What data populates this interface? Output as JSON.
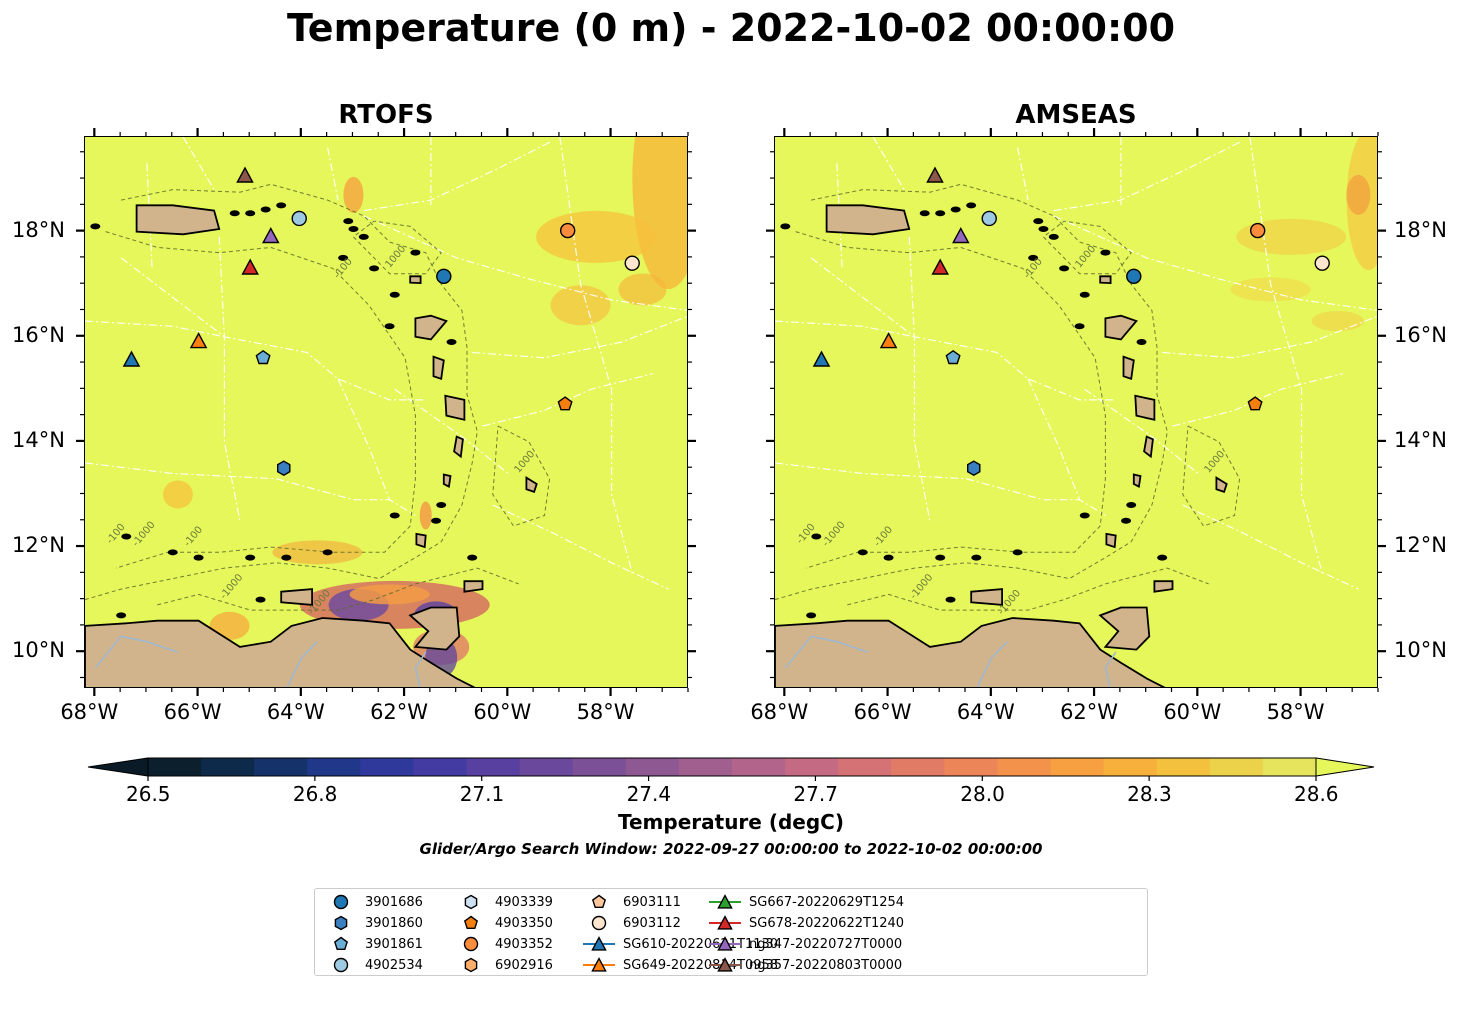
{
  "title": "Temperature (0 m) - 2022-10-02 00:00:00",
  "panels": [
    {
      "id": "rtofs",
      "title": "RTOFS"
    },
    {
      "id": "amseas",
      "title": "AMSEAS"
    }
  ],
  "lon_ticks": [
    "68°W",
    "66°W",
    "64°W",
    "62°W",
    "60°W",
    "58°W"
  ],
  "lat_ticks": [
    "18°N",
    "16°N",
    "14°N",
    "12°N",
    "10°N"
  ],
  "bathymetry_labels": [
    "-100",
    "-1000",
    "-1000",
    "-100",
    "1000",
    "-1000",
    "-100",
    "1000"
  ],
  "colorbar": {
    "label": "Temperature (degC)",
    "ticks": [
      "26.5",
      "26.8",
      "27.1",
      "27.4",
      "27.7",
      "28.0",
      "28.3",
      "28.6"
    ],
    "colors": [
      "#0b1f2c",
      "#0e2a4a",
      "#16326a",
      "#21378a",
      "#2f399c",
      "#433aa2",
      "#5840a0",
      "#6a489b",
      "#7c5096",
      "#8e5992",
      "#a05f8e",
      "#b3648a",
      "#c46a82",
      "#d47275",
      "#e27b66",
      "#ec8558",
      "#f3924b",
      "#f6a041",
      "#f7b03c",
      "#f3c13e",
      "#ebd24a",
      "#e6e45c"
    ],
    "over_color": "#e5f75a",
    "under_color": "#0a1a26"
  },
  "search_window": "Glider/Argo Search Window: 2022-09-27 00:00:00 to 2022-10-02 00:00:00",
  "legend": [
    {
      "label": "3901686",
      "marker": "circle",
      "color": "#1f77b4"
    },
    {
      "label": "3901860",
      "marker": "hexagon",
      "color": "#3a7fc0"
    },
    {
      "label": "3901861",
      "marker": "pentagon",
      "color": "#6aaed6"
    },
    {
      "label": "4902534",
      "marker": "circle",
      "color": "#9ecae1"
    },
    {
      "label": "4903339",
      "marker": "hexagon",
      "color": "#cde1f2"
    },
    {
      "label": "4903350",
      "marker": "pentagon",
      "color": "#f57f0e"
    },
    {
      "label": "4903352",
      "marker": "circle",
      "color": "#fd8d3c"
    },
    {
      "label": "6902916",
      "marker": "hexagon",
      "color": "#fdae6b"
    },
    {
      "label": "6903111",
      "marker": "pentagon",
      "color": "#fdc79b"
    },
    {
      "label": "6903112",
      "marker": "circle",
      "color": "#fee6ce"
    },
    {
      "label": "SG610-20220621T1130",
      "marker": "triangle",
      "color": "#1f77b4"
    },
    {
      "label": "SG649-20220814T0958",
      "marker": "triangle",
      "color": "#ff7f0e"
    },
    {
      "label": "SG667-20220629T1254",
      "marker": "triangle",
      "color": "#2ca02c"
    },
    {
      "label": "SG678-20220622T1240",
      "marker": "triangle",
      "color": "#d62728"
    },
    {
      "label": "ng347-20220727T0000",
      "marker": "triangle",
      "color": "#9467bd"
    },
    {
      "label": "ng357-20220803T0000",
      "marker": "triangle",
      "color": "#8c564b"
    }
  ],
  "map": {
    "ocean_color": "#e5f75a",
    "land_color": "#d2b48c",
    "lon_range": [
      -68.2,
      -56.5
    ],
    "lat_range": [
      9.3,
      19.8
    ]
  },
  "platforms": [
    {
      "legend_index": 0,
      "lon": -61.25,
      "lat": 17.15
    },
    {
      "legend_index": 1,
      "lon": -64.35,
      "lat": 13.5
    },
    {
      "legend_index": 2,
      "lon": -64.75,
      "lat": 15.6
    },
    {
      "legend_index": 3,
      "lon": -64.05,
      "lat": 18.25
    },
    {
      "legend_index": 5,
      "lon": -58.9,
      "lat": 14.72
    },
    {
      "legend_index": 6,
      "lon": -58.85,
      "lat": 18.02
    },
    {
      "legend_index": 9,
      "lon": -57.6,
      "lat": 17.4
    },
    {
      "legend_index": 10,
      "lon": -67.3,
      "lat": 15.55
    },
    {
      "legend_index": 11,
      "lon": -66.0,
      "lat": 15.9
    },
    {
      "legend_index": 13,
      "lon": -65.0,
      "lat": 17.3
    },
    {
      "legend_index": 14,
      "lon": -64.6,
      "lat": 17.9
    },
    {
      "legend_index": 15,
      "lon": -65.1,
      "lat": 19.05
    }
  ]
}
